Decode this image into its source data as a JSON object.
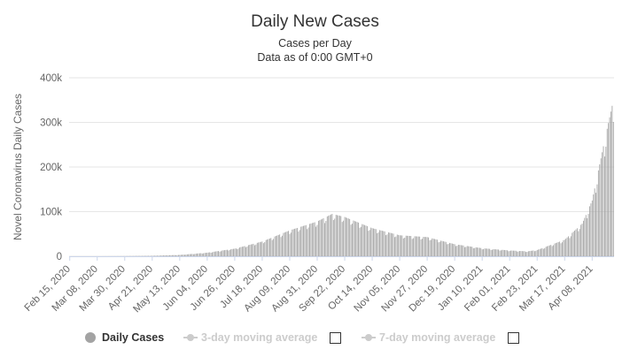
{
  "header": {
    "title": "Daily New Cases",
    "subtitle": "Cases per Day",
    "subtitle2": "Data as of 0:00 GMT+0"
  },
  "legend": {
    "items": [
      {
        "label": "Daily Cases",
        "active": true
      },
      {
        "label": "3-day moving average",
        "active": false
      },
      {
        "label": "7-day moving average",
        "active": false
      }
    ]
  },
  "colors": {
    "bar": "#a3a3a3",
    "inactive": "#cccccc",
    "axis_text": "#666666",
    "grid": "#e6e6e6"
  },
  "chart_data": {
    "type": "bar",
    "title": "Daily New Cases",
    "subtitle": "Cases per Day",
    "ylabel": "Novel Coronavirus Daily Cases",
    "ylim": [
      0,
      400000
    ],
    "yticks": [
      0,
      100000,
      200000,
      300000,
      400000
    ],
    "ytick_labels": [
      "0",
      "100k",
      "200k",
      "300k",
      "400k"
    ],
    "xtick_labels": [
      "Feb 15, 2020",
      "Mar 08, 2020",
      "Mar 30, 2020",
      "Apr 21, 2020",
      "May 13, 2020",
      "Jun 04, 2020",
      "Jun 26, 2020",
      "Jul 18, 2020",
      "Aug 09, 2020",
      "Aug 31, 2020",
      "Sep 22, 2020",
      "Oct 14, 2020",
      "Nov 05, 2020",
      "Nov 27, 2020",
      "Dec 19, 2020",
      "Jan 10, 2021",
      "Feb 01, 2021",
      "Feb 23, 2021",
      "Mar 17, 2021",
      "Apr 08, 2021"
    ],
    "grid": true,
    "legend_position": "bottom",
    "series": [
      {
        "name": "Daily Cases",
        "date_start": "Feb 15, 2020",
        "date_end": "Apr 25, 2021",
        "anchors": [
          {
            "date": "Feb 15, 2020",
            "value": 0
          },
          {
            "date": "Mar 08, 2020",
            "value": 0
          },
          {
            "date": "Mar 30, 2020",
            "value": 300
          },
          {
            "date": "Apr 21, 2020",
            "value": 1000
          },
          {
            "date": "May 13, 2020",
            "value": 3000
          },
          {
            "date": "Jun 04, 2020",
            "value": 8000
          },
          {
            "date": "Jun 26, 2020",
            "value": 17000
          },
          {
            "date": "Jul 18, 2020",
            "value": 33000
          },
          {
            "date": "Aug 09, 2020",
            "value": 58000
          },
          {
            "date": "Aug 31, 2020",
            "value": 78000
          },
          {
            "date": "Sep 12, 2020",
            "value": 95000
          },
          {
            "date": "Sep 22, 2020",
            "value": 88000
          },
          {
            "date": "Oct 14, 2020",
            "value": 63000
          },
          {
            "date": "Nov 05, 2020",
            "value": 47000
          },
          {
            "date": "Nov 27, 2020",
            "value": 43000
          },
          {
            "date": "Dec 19, 2020",
            "value": 27000
          },
          {
            "date": "Jan 10, 2021",
            "value": 18000
          },
          {
            "date": "Feb 01, 2021",
            "value": 13000
          },
          {
            "date": "Feb 15, 2021",
            "value": 11000
          },
          {
            "date": "Feb 23, 2021",
            "value": 14000
          },
          {
            "date": "Mar 17, 2021",
            "value": 37000
          },
          {
            "date": "Mar 31, 2021",
            "value": 73000
          },
          {
            "date": "Apr 08, 2021",
            "value": 125000
          },
          {
            "date": "Apr 18, 2021",
            "value": 260000
          },
          {
            "date": "Apr 25, 2021",
            "value": 350000
          }
        ]
      }
    ]
  }
}
